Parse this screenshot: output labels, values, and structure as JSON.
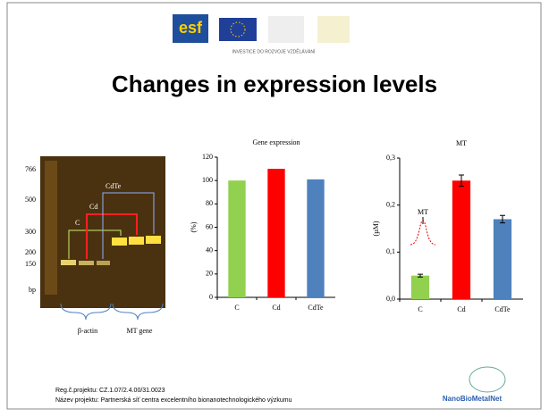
{
  "slide": {
    "title": "Changes in expression levels",
    "logo_text": "esf",
    "logo_caption": "INVESTICE DO ROZVOJE VZDĚLÁVÁNÍ",
    "footer": [
      "Reg.č.projektu: CZ.1.07/2.4.00/31.0023",
      "Název projektu: Partnerská síť centra excelentního bionanotechnologického výzkumu"
    ],
    "network_logo": "NanoBioMetalNet"
  },
  "gel": {
    "ladder": [
      "766",
      "500",
      "300",
      "200",
      "150",
      "bp"
    ],
    "lanes": [
      "C",
      "Cd",
      "CdTe"
    ],
    "groups": [
      "β-actin",
      "MT gene"
    ]
  },
  "chart_data": [
    {
      "type": "bar",
      "title": "Gene expression",
      "y_label": "(%)",
      "categories": [
        "C",
        "Cd",
        "CdTe"
      ],
      "values": [
        100,
        110,
        101
      ],
      "colors": [
        "#92d050",
        "#ff0000",
        "#4f81bd"
      ],
      "ylim": [
        0,
        120
      ],
      "yticks": [
        0,
        20,
        40,
        60,
        80,
        100,
        120
      ]
    },
    {
      "type": "bar",
      "title": "MT",
      "y_label": "(µM)",
      "annotation": "MT",
      "categories": [
        "C",
        "Cd",
        "CdTe"
      ],
      "values": [
        0.05,
        0.252,
        0.17
      ],
      "errors": [
        0.003,
        0.012,
        0.008
      ],
      "colors": [
        "#92d050",
        "#ff0000",
        "#4f81bd"
      ],
      "ylim": [
        0,
        0.3
      ],
      "yticks": [
        {
          "value": 0,
          "label": "0,0"
        },
        {
          "value": 0.1,
          "label": "0,1"
        },
        {
          "value": 0.2,
          "label": "0,2"
        },
        {
          "value": 0.3,
          "label": "0,3"
        }
      ]
    }
  ]
}
